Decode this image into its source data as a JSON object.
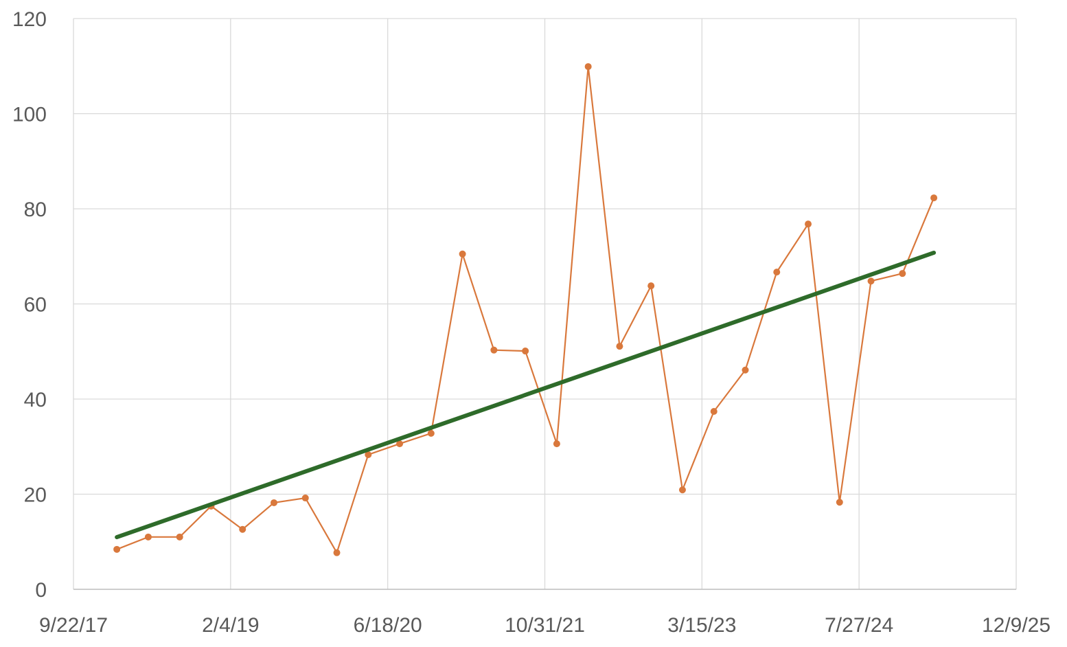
{
  "chart_data": {
    "type": "line",
    "title": "",
    "xlabel": "",
    "ylabel": "",
    "x_axis_type": "date",
    "xlim": [
      "2017-09-22",
      "2025-12-09"
    ],
    "ylim": [
      0,
      120
    ],
    "x_ticks": [
      "9/22/17",
      "2/4/19",
      "6/18/20",
      "10/31/21",
      "3/15/23",
      "7/27/24",
      "12/9/25"
    ],
    "y_ticks": [
      "0",
      "20",
      "40",
      "60",
      "80",
      "100",
      "120"
    ],
    "grid": true,
    "legend": "none",
    "series": [
      {
        "color": "#D9783C",
        "markers": true,
        "x": [
          "2018-02-07",
          "2018-05-18",
          "2018-08-26",
          "2018-12-04",
          "2019-03-14",
          "2019-06-22",
          "2019-09-30",
          "2020-01-08",
          "2020-04-17",
          "2020-07-26",
          "2020-11-03",
          "2021-02-11",
          "2021-05-22",
          "2021-08-30",
          "2021-12-08",
          "2022-03-18",
          "2022-06-26",
          "2022-10-04",
          "2023-01-12",
          "2023-04-22",
          "2023-07-31",
          "2023-11-08",
          "2024-02-16",
          "2024-05-26",
          "2024-09-03",
          "2024-12-12",
          "2025-03-22"
        ],
        "values": [
          8.4,
          11.0,
          11.0,
          17.5,
          12.6,
          18.2,
          19.2,
          7.7,
          28.3,
          30.6,
          32.8,
          70.5,
          50.3,
          50.1,
          30.6,
          109.9,
          51.1,
          63.8,
          20.9,
          37.4,
          46.1,
          66.7,
          76.8,
          18.3,
          64.8,
          66.4,
          82.3
        ]
      }
    ],
    "trendline": {
      "type": "linear",
      "color": "#2E6B2A"
    }
  }
}
